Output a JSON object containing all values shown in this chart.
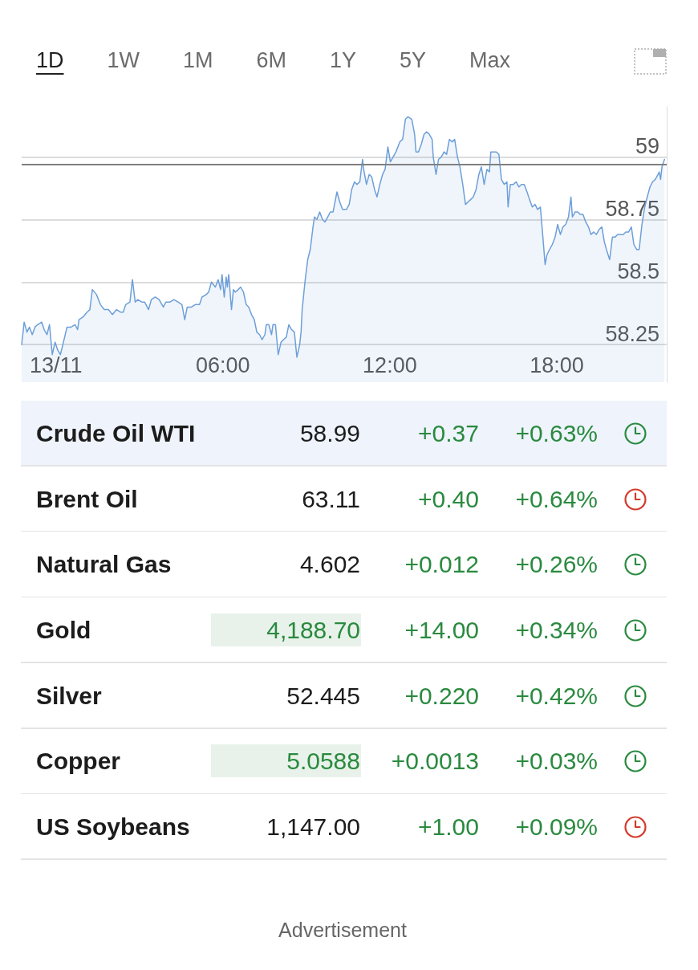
{
  "chart_data": [
    {
      "type": "area",
      "annotations": [
        "1D",
        "1W",
        "1M",
        "6M",
        "1Y",
        "5Y",
        "Max"
      ],
      "color": "#6d9fd8",
      "x": [
        -1.23,
        -1.14,
        -1.04,
        -0.95,
        -0.85,
        -0.75,
        -0.66,
        -0.51,
        -0.42,
        -0.32,
        -0.23,
        -0.13,
        -0.03,
        0.06,
        0.16,
        0.25,
        0.4,
        0.54,
        0.69,
        0.78,
        0.83,
        0.97,
        1.12,
        1.22,
        1.31,
        1.46,
        1.6,
        1.74,
        1.89,
        2.03,
        2.18,
        2.32,
        2.42,
        2.51,
        2.66,
        2.75,
        2.85,
        2.94,
        3.09,
        3.19,
        3.33,
        3.43,
        3.57,
        3.71,
        3.86,
        3.95,
        4.1,
        4.24,
        4.39,
        4.53,
        4.63,
        4.72,
        4.87,
        5.01,
        5.16,
        5.25,
        5.4,
        5.49,
        5.59,
        5.73,
        5.83,
        5.92,
        5.97,
        6.05,
        6.12,
        6.16,
        6.21,
        6.31,
        6.38,
        6.45,
        6.55,
        6.64,
        6.74,
        6.84,
        6.93,
        7.03,
        7.13,
        7.22,
        7.32,
        7.41,
        7.51,
        7.56,
        7.65,
        7.75,
        7.8,
        7.89,
        7.99,
        8.09,
        8.18,
        8.28,
        8.37,
        8.47,
        8.57,
        8.66,
        8.76,
        8.81,
        8.85,
        8.95,
        9.05,
        9.14,
        9.24,
        9.29,
        9.38,
        9.48,
        9.58,
        9.67,
        9.77,
        9.86,
        9.96,
        10.1,
        10.2,
        10.3,
        10.44,
        10.54,
        10.63,
        10.73,
        10.82,
        10.92,
        11.02,
        11.06,
        11.16,
        11.26,
        11.35,
        11.45,
        11.54,
        11.64,
        11.74,
        11.83,
        11.93,
        12.02,
        12.12,
        12.22,
        12.36,
        12.46,
        12.56,
        12.65,
        12.79,
        12.89,
        12.94,
        13.03,
        13.13,
        13.23,
        13.32,
        13.42,
        13.52,
        13.56,
        13.66,
        13.75,
        13.85,
        13.95,
        14.04,
        14.14,
        14.24,
        14.33,
        14.43,
        14.52,
        14.62,
        14.72,
        14.81,
        14.91,
        15.0,
        15.1,
        15.2,
        15.29,
        15.39,
        15.49,
        15.58,
        15.63,
        15.73,
        15.82,
        15.92,
        16.01,
        16.11,
        16.21,
        16.25,
        16.33,
        16.44,
        16.54,
        16.64,
        16.73,
        16.83,
        16.93,
        17.02,
        17.12,
        17.22,
        17.31,
        17.41,
        17.5,
        17.58,
        17.65,
        17.74,
        17.84,
        17.94,
        18.03,
        18.13,
        18.22,
        18.32,
        18.42,
        18.51,
        18.56,
        18.66,
        18.75,
        18.85,
        18.94,
        19.04,
        19.14,
        19.23,
        19.33,
        19.42,
        19.52,
        19.62,
        19.71,
        19.81,
        19.9,
        20.0,
        20.1,
        20.19,
        20.29,
        20.39,
        20.48,
        20.58,
        20.68,
        20.77,
        20.87,
        20.96,
        21.06,
        21.16,
        21.25,
        21.35,
        21.44,
        21.54,
        21.64,
        21.68,
        21.73,
        21.78,
        21.87
      ],
      "values": [
        58.25,
        58.34,
        58.3,
        58.32,
        58.29,
        58.32,
        58.33,
        58.34,
        58.31,
        58.29,
        58.33,
        58.21,
        58.26,
        58.23,
        58.21,
        58.25,
        58.32,
        58.32,
        58.33,
        58.31,
        58.35,
        58.36,
        58.38,
        58.39,
        58.47,
        58.45,
        58.41,
        58.39,
        58.39,
        58.37,
        58.39,
        58.38,
        58.38,
        58.41,
        58.42,
        58.51,
        58.42,
        58.43,
        58.42,
        58.42,
        58.39,
        58.43,
        58.44,
        58.43,
        58.4,
        58.42,
        58.42,
        58.43,
        58.42,
        58.41,
        58.35,
        58.4,
        58.4,
        58.41,
        58.41,
        58.44,
        58.45,
        58.46,
        58.5,
        58.48,
        58.51,
        58.47,
        58.53,
        58.44,
        58.52,
        58.48,
        58.53,
        58.39,
        58.47,
        58.46,
        58.47,
        58.48,
        58.46,
        58.41,
        58.4,
        58.37,
        58.35,
        58.3,
        58.29,
        58.27,
        58.29,
        58.33,
        58.33,
        58.29,
        58.33,
        58.33,
        58.21,
        58.26,
        58.27,
        58.28,
        58.33,
        58.31,
        58.3,
        58.2,
        58.25,
        58.3,
        58.39,
        58.5,
        58.59,
        58.63,
        58.72,
        58.76,
        58.75,
        58.78,
        58.75,
        58.74,
        58.76,
        58.78,
        58.78,
        58.86,
        58.82,
        58.79,
        58.79,
        58.81,
        58.87,
        58.9,
        58.89,
        58.9,
        58.99,
        58.95,
        58.89,
        58.93,
        58.92,
        58.87,
        58.84,
        58.89,
        58.93,
        58.95,
        59.04,
        58.98,
        59.0,
        59.02,
        59.06,
        59.07,
        59.15,
        59.16,
        59.15,
        59.09,
        59.02,
        59.02,
        59.05,
        59.09,
        59.1,
        59.09,
        59.07,
        59.0,
        58.93,
        58.99,
        59.0,
        59.02,
        59.01,
        59.07,
        59.06,
        59.07,
        59.0,
        58.96,
        58.89,
        58.81,
        58.82,
        58.83,
        58.84,
        58.87,
        58.93,
        58.96,
        58.89,
        58.95,
        58.94,
        59.02,
        59.02,
        59.02,
        59.01,
        58.91,
        58.89,
        58.9,
        58.8,
        58.89,
        58.89,
        58.9,
        58.88,
        58.89,
        58.89,
        58.86,
        58.83,
        58.8,
        58.81,
        58.79,
        58.8,
        58.68,
        58.57,
        58.61,
        58.63,
        58.65,
        58.68,
        58.73,
        58.69,
        58.72,
        58.73,
        58.76,
        58.84,
        58.76,
        58.78,
        58.78,
        58.77,
        58.77,
        58.74,
        58.72,
        58.69,
        58.7,
        58.69,
        58.71,
        58.72,
        58.66,
        58.62,
        58.59,
        58.68,
        58.68,
        58.69,
        58.69,
        58.69,
        58.7,
        58.7,
        58.72,
        58.65,
        58.63,
        58.63,
        58.73,
        58.8,
        58.84,
        58.88,
        58.9,
        58.91,
        58.93,
        58.94,
        58.91,
        58.96,
        58.99
      ],
      "xlim": [
        -1.23,
        21.95
      ],
      "xticks": [
        {
          "value": 0,
          "label": "13/11"
        },
        {
          "value": 6,
          "label": "06:00"
        },
        {
          "value": 12,
          "label": "12:00"
        },
        {
          "value": 18,
          "label": "18:00"
        }
      ],
      "ylim": [
        58.1,
        59.2
      ],
      "yticks": [
        58.25,
        58.5,
        58.75,
        59
      ],
      "grid": "y",
      "ref_lines": [
        {
          "axis": "y",
          "value": 58.97,
          "color": "#808080"
        }
      ]
    },
    {
      "type": "other",
      "categories": [
        "Crude Oil WTI",
        "Brent Oil",
        "Natural Gas",
        "Gold",
        "Silver",
        "Copper",
        "US Soybeans"
      ],
      "series": [
        {
          "color": "#1c1c1c",
          "colors": [
            "#1c1c1c",
            "#1c1c1c",
            "#1c1c1c",
            "#2a8a3f",
            "#1c1c1c",
            "#2a8a3f",
            "#1c1c1c"
          ],
          "values": [
            58.99,
            63.11,
            4.602,
            4188.7,
            52.445,
            5.0588,
            1147.0
          ],
          "value_labels": [
            "58.99",
            "63.11",
            "4.602",
            "4,188.70",
            "52.445",
            "5.0588",
            "1,147.00"
          ]
        },
        {
          "color": "#2a8a3f",
          "values": [
            0.37,
            0.4,
            0.012,
            14.0,
            0.22,
            0.0013,
            1.0
          ],
          "value_labels": [
            "+0.37",
            "+0.40",
            "+0.012",
            "+14.00",
            "+0.220",
            "+0.0013",
            "+1.00"
          ]
        },
        {
          "color": "#2a8a3f",
          "values": [
            0.63,
            0.64,
            0.26,
            0.34,
            0.42,
            0.03,
            0.09
          ],
          "value_labels": [
            "+0.63%",
            "+0.64%",
            "+0.26%",
            "+0.34%",
            "+0.42%",
            "+0.03%",
            "+0.09%"
          ]
        }
      ],
      "colors": [
        "#2a8a3f",
        "#d33a2c",
        "#2a8a3f",
        "#2a8a3f",
        "#2a8a3f",
        "#2a8a3f",
        "#d33a2c"
      ],
      "annotations": [
        "Advertisement"
      ]
    }
  ]
}
